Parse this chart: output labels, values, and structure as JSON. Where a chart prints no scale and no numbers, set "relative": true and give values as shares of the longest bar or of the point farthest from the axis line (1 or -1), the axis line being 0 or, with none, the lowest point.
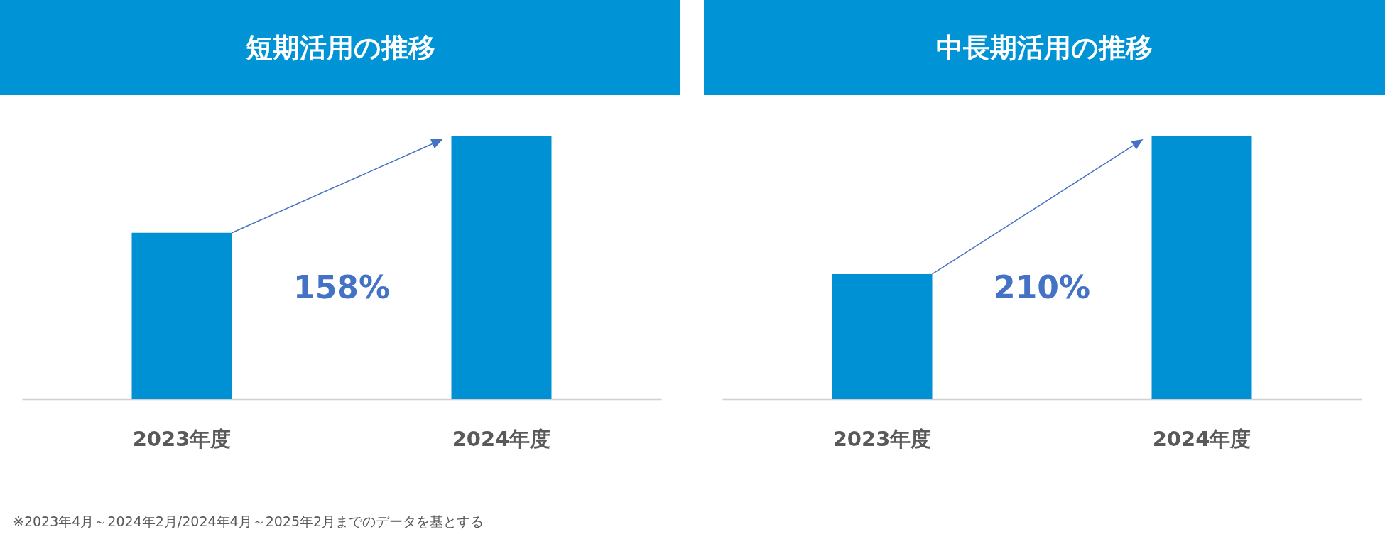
{
  "chart_data": [
    {
      "type": "bar",
      "title": "短期活用の推移",
      "categories": [
        "2023年度",
        "2024年度"
      ],
      "values": [
        0.633,
        1
      ],
      "relative": true,
      "color": "#0091d5",
      "annotations": [
        "158%",
        "※2023年4月～2024年2月/2024年4月～2025年2月までのデータを基とする"
      ]
    },
    {
      "type": "bar",
      "title": "中長期活用の推移",
      "categories": [
        "2023年度",
        "2024年度"
      ],
      "values": [
        0.476,
        1
      ],
      "relative": true,
      "color": "#0091d5",
      "annotations": [
        "210%"
      ]
    }
  ]
}
